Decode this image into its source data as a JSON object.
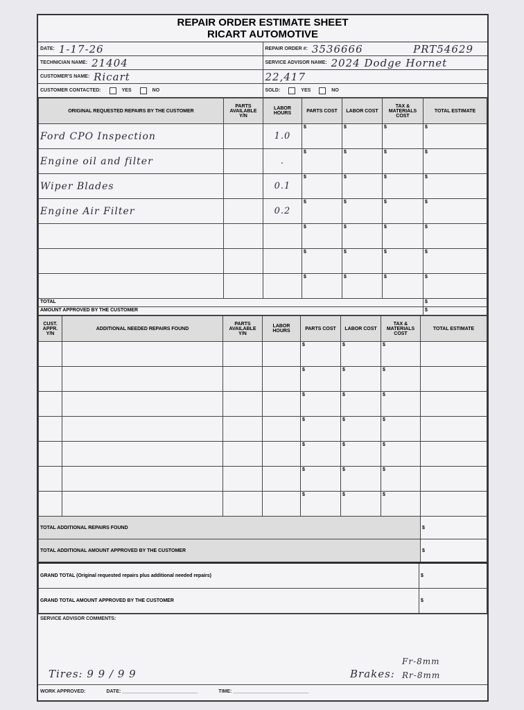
{
  "header": {
    "title": "REPAIR ORDER ESTIMATE SHEET",
    "subtitle": "RICART AUTOMOTIVE"
  },
  "fields": {
    "date_label": "DATE:",
    "date": "1-17-26",
    "repair_order_label": "REPAIR ORDER #:",
    "repair_order": "3536666",
    "prt": "PRT54629",
    "technician_label": "TECHNICIAN NAME:",
    "technician": "21404",
    "advisor_label": "SERVICE ADVISOR NAME:",
    "vehicle": "2024 Dodge Hornet",
    "customer_label": "CUSTOMER'S NAME:",
    "customer": "Ricart",
    "mileage": "22,417",
    "contacted_label": "CUSTOMER CONTACTED:",
    "sold_label": "SOLD:",
    "yes": "YES",
    "no": "NO"
  },
  "original": {
    "headers": [
      "ORIGINAL REQUESTED REPAIRS BY THE CUSTOMER",
      "PARTS AVAILABLE Y/N",
      "LABOR HOURS",
      "PARTS COST",
      "LABOR COST",
      "TAX & MATERIALS COST",
      "TOTAL ESTIMATE"
    ],
    "rows": [
      {
        "desc": "Ford CPO Inspection",
        "hours": "1.0"
      },
      {
        "desc": "Engine oil and filter",
        "hours": "."
      },
      {
        "desc": "Wiper Blades",
        "hours": "0.1"
      },
      {
        "desc": "Engine Air Filter",
        "hours": "0.2"
      },
      {
        "desc": "",
        "hours": ""
      },
      {
        "desc": "",
        "hours": ""
      },
      {
        "desc": "",
        "hours": ""
      }
    ],
    "total_label": "TOTAL",
    "approved_label": "AMOUNT APPROVED BY THE CUSTOMER"
  },
  "currency": "$",
  "additional": {
    "headers": [
      "CUST. APPR. Y/N",
      "ADDITIONAL NEEDED REPAIRS FOUND",
      "PARTS AVAILABLE Y/N",
      "LABOR HOURS",
      "PARTS COST",
      "LABOR COST",
      "TAX & MATERIALS COST",
      "TOTAL ESTIMATE"
    ],
    "row_count": 7,
    "total_label": "TOTAL ADDITIONAL REPAIRS FOUND",
    "approved_label": "TOTAL ADDITIONAL AMOUNT APPROVED BY THE CUSTOMER"
  },
  "grand": {
    "total_label": "GRAND TOTAL (Original requested repairs plus additional needed repairs)",
    "approved_label": "GRAND TOTAL AMOUNT APPROVED BY THE CUSTOMER"
  },
  "comments": {
    "label": "SERVICE ADVISOR COMMENTS:",
    "tires": "Tires: 9 9 / 9 9",
    "brakes_label": "Brakes:",
    "brakes_front": "Fr-8mm",
    "brakes_rear": "Rr-8mm"
  },
  "footer": {
    "work_approved": "WORK APPROVED:",
    "date": "DATE:",
    "time": "TIME:"
  }
}
